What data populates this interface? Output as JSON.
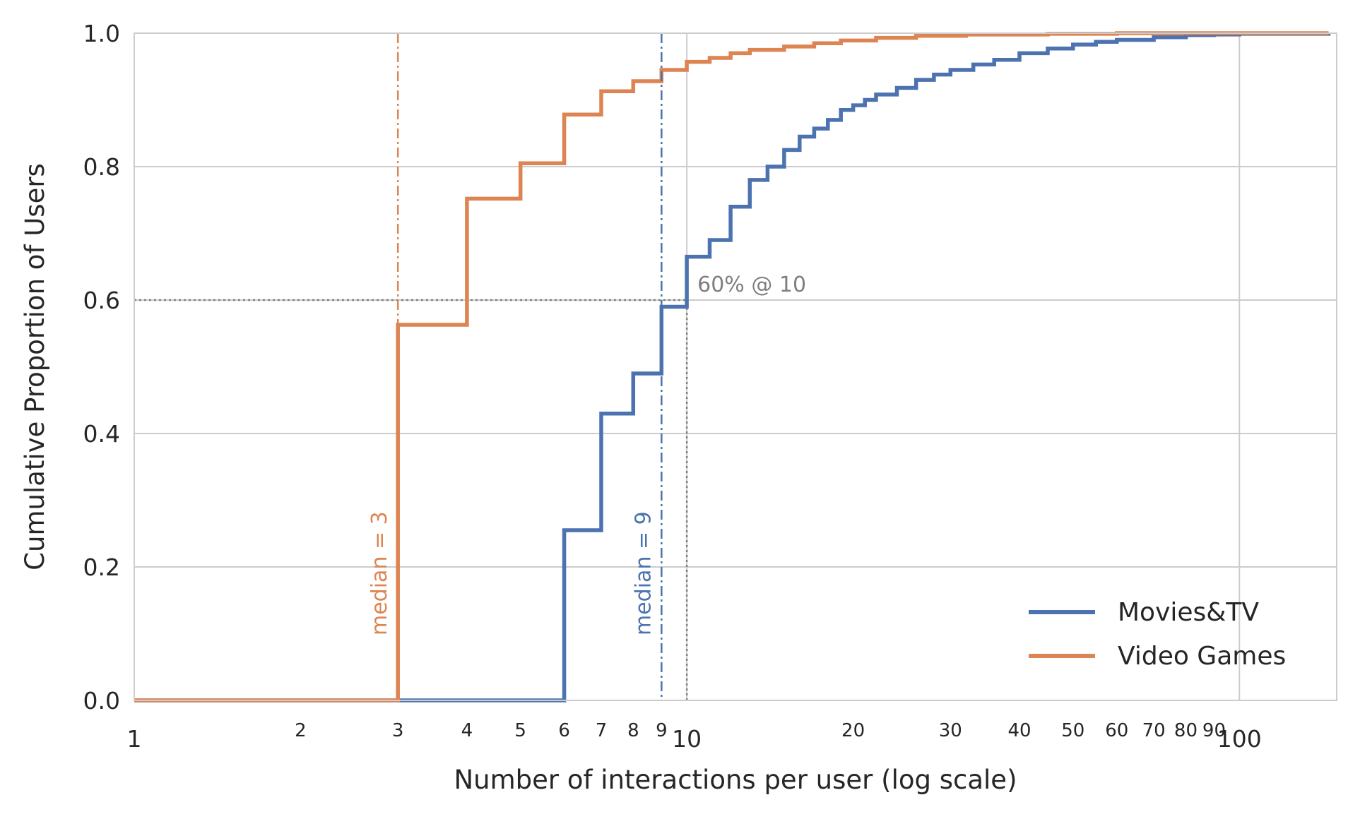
{
  "chart_data": {
    "type": "line",
    "title": "",
    "xlabel": "Number of interactions per user (log scale)",
    "ylabel": "Cumulative Proportion of Users",
    "x_scale": "log",
    "xlim": [
      1,
      150
    ],
    "ylim": [
      0,
      1
    ],
    "grid": true,
    "legend_position": "bottom-right",
    "x_major_ticks": [
      {
        "value": 1,
        "label": "1"
      },
      {
        "value": 10,
        "label": "10"
      },
      {
        "value": 100,
        "label": "100"
      }
    ],
    "x_minor_ticks": [
      {
        "value": 2,
        "label": "2"
      },
      {
        "value": 3,
        "label": "3"
      },
      {
        "value": 4,
        "label": "4"
      },
      {
        "value": 5,
        "label": "5"
      },
      {
        "value": 6,
        "label": "6"
      },
      {
        "value": 7,
        "label": "7"
      },
      {
        "value": 8,
        "label": "8"
      },
      {
        "value": 9,
        "label": "9"
      },
      {
        "value": 20,
        "label": "20"
      },
      {
        "value": 30,
        "label": "30"
      },
      {
        "value": 40,
        "label": "40"
      },
      {
        "value": 50,
        "label": "50"
      },
      {
        "value": 60,
        "label": "60"
      },
      {
        "value": 70,
        "label": "70"
      },
      {
        "value": 80,
        "label": "80"
      },
      {
        "value": 90,
        "label": "90"
      }
    ],
    "y_ticks": [
      {
        "value": 0.0,
        "label": "0.0"
      },
      {
        "value": 0.2,
        "label": "0.2"
      },
      {
        "value": 0.4,
        "label": "0.4"
      },
      {
        "value": 0.6,
        "label": "0.6"
      },
      {
        "value": 0.8,
        "label": "0.8"
      },
      {
        "value": 1.0,
        "label": "1.0"
      }
    ],
    "series": [
      {
        "name": "Movies&TV",
        "color": "#4c72b0",
        "step": true,
        "points": [
          [
            1,
            0
          ],
          [
            6,
            0
          ],
          [
            6,
            0.255
          ],
          [
            7,
            0.43
          ],
          [
            8,
            0.49
          ],
          [
            9,
            0.59
          ],
          [
            10,
            0.665
          ],
          [
            11,
            0.69
          ],
          [
            12,
            0.74
          ],
          [
            13,
            0.78
          ],
          [
            14,
            0.8
          ],
          [
            15,
            0.825
          ],
          [
            16,
            0.845
          ],
          [
            17,
            0.857
          ],
          [
            18,
            0.87
          ],
          [
            19,
            0.885
          ],
          [
            20,
            0.892
          ],
          [
            21,
            0.9
          ],
          [
            22,
            0.908
          ],
          [
            24,
            0.918
          ],
          [
            26,
            0.93
          ],
          [
            28,
            0.938
          ],
          [
            30,
            0.945
          ],
          [
            33,
            0.953
          ],
          [
            36,
            0.96
          ],
          [
            40,
            0.97
          ],
          [
            45,
            0.977
          ],
          [
            50,
            0.983
          ],
          [
            55,
            0.987
          ],
          [
            60,
            0.99
          ],
          [
            70,
            0.994
          ],
          [
            80,
            0.997
          ],
          [
            90,
            0.998
          ],
          [
            100,
            0.999
          ],
          [
            145,
            1.0
          ]
        ]
      },
      {
        "name": "Video Games",
        "color": "#dd8452",
        "step": true,
        "points": [
          [
            1,
            0
          ],
          [
            3,
            0
          ],
          [
            3,
            0.563
          ],
          [
            4,
            0.752
          ],
          [
            5,
            0.805
          ],
          [
            6,
            0.878
          ],
          [
            7,
            0.913
          ],
          [
            8,
            0.928
          ],
          [
            9,
            0.945
          ],
          [
            10,
            0.957
          ],
          [
            11,
            0.963
          ],
          [
            12,
            0.97
          ],
          [
            13,
            0.975
          ],
          [
            15,
            0.98
          ],
          [
            17,
            0.985
          ],
          [
            19,
            0.989
          ],
          [
            22,
            0.993
          ],
          [
            26,
            0.996
          ],
          [
            32,
            0.998
          ],
          [
            45,
            0.999
          ],
          [
            60,
            1.0
          ],
          [
            145,
            1.0
          ]
        ]
      }
    ],
    "median_lines": [
      {
        "series": "Video Games",
        "x": 3,
        "label": "median = 3",
        "color": "#dd8452"
      },
      {
        "series": "Movies&TV",
        "x": 9,
        "label": "median = 9",
        "color": "#4c72b0"
      }
    ],
    "reference": {
      "x": 10,
      "y": 0.6,
      "label": "60% @ 10",
      "color": "#7f7f7f"
    }
  }
}
